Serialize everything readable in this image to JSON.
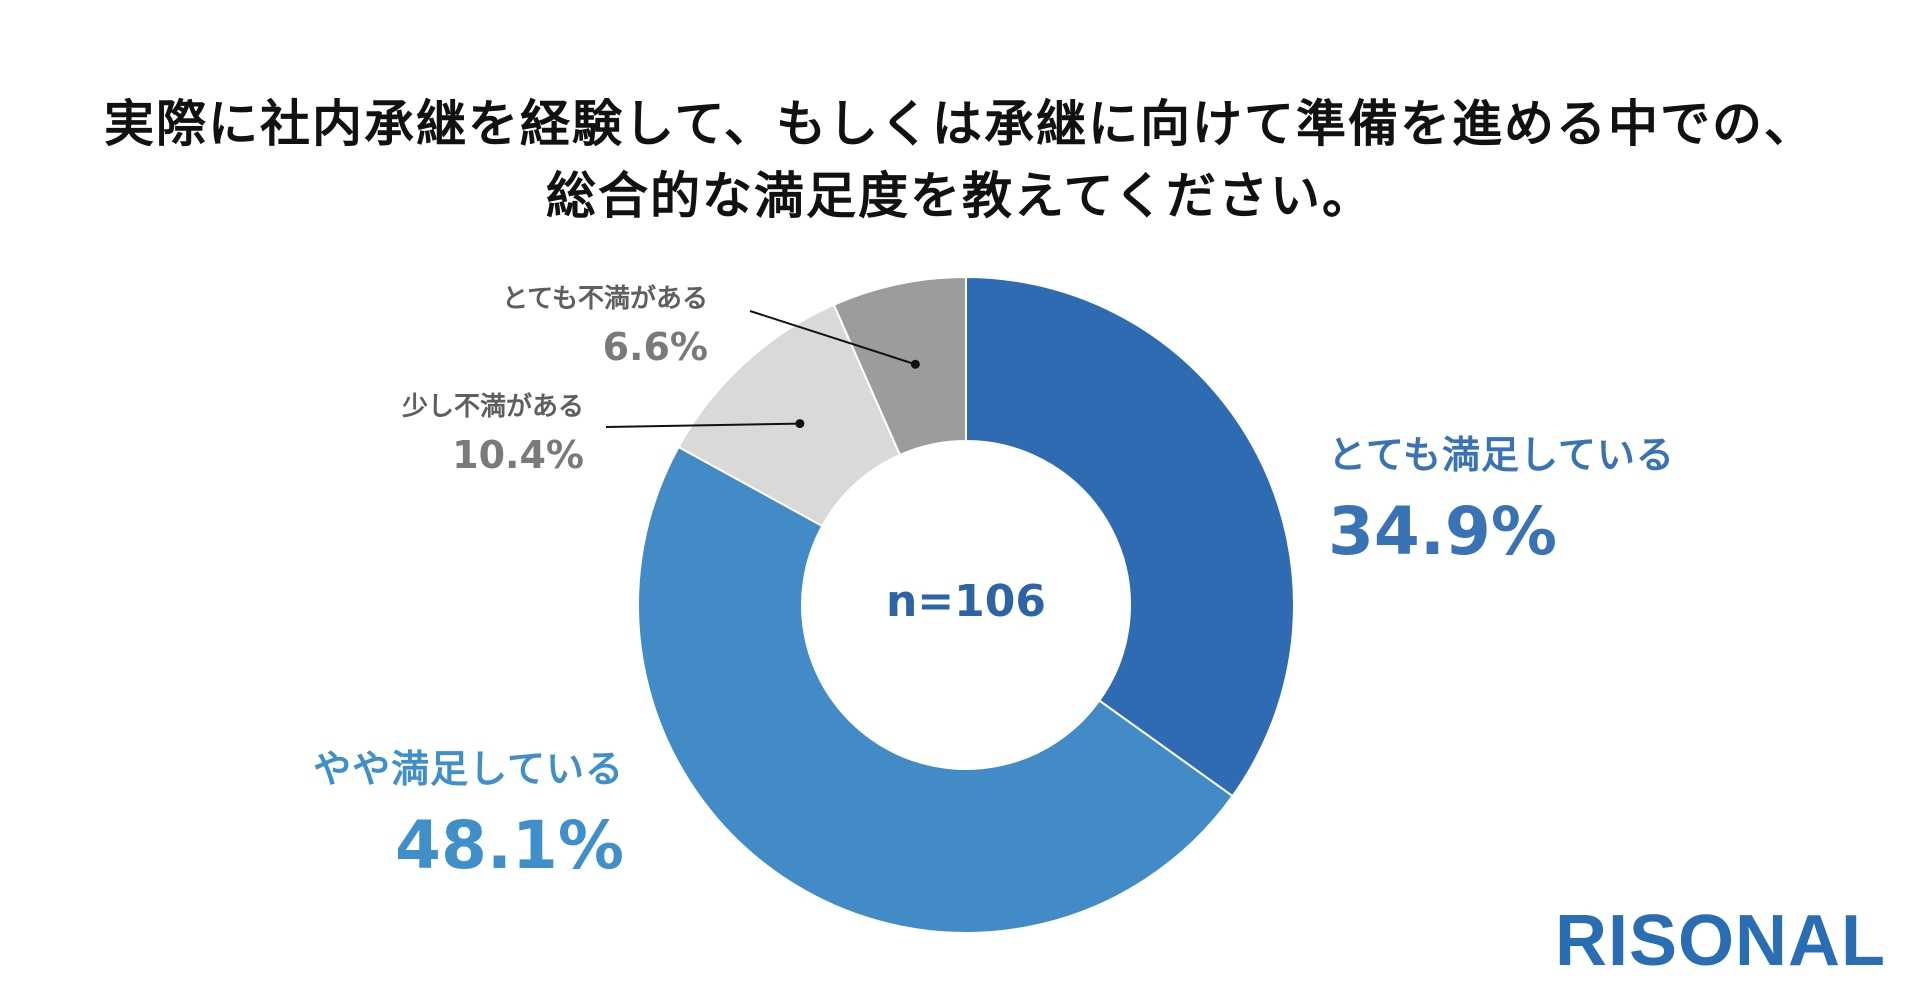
{
  "title": {
    "line1": "実際に社内承継を経験して、もしくは承継に向けて準備を進める中での、",
    "line2": "総合的な満足度を教えてください。"
  },
  "sample_size": "n=106",
  "brand": "RISONAL",
  "chart_data": {
    "type": "pie",
    "donut": true,
    "title": "実際に社内承継を経験して、もしくは承継に向けて準備を進める中での、総合的な満足度を教えてください。",
    "categories": [
      "とても満足している",
      "やや満足している",
      "少し不満がある",
      "とても不満がある"
    ],
    "values": [
      34.9,
      48.1,
      10.4,
      6.6
    ],
    "value_labels": [
      "34.9%",
      "48.1%",
      "10.4%",
      "6.6%"
    ],
    "colors": [
      "#2e6bb2",
      "#428bc7",
      "#d9d9d9",
      "#9a9d99"
    ],
    "start": "12 o'clock",
    "direction": "clockwise",
    "legend": "none"
  }
}
